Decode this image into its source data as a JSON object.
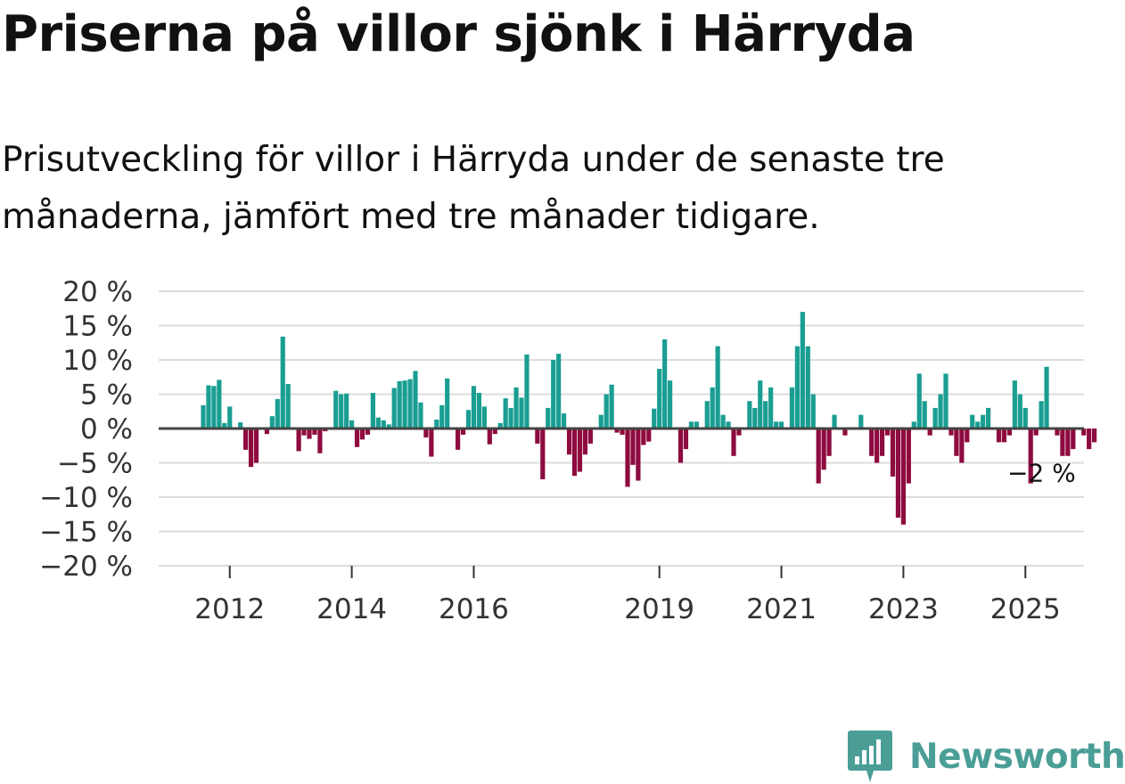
{
  "title": "Priserna på villor sjönk i Härryda",
  "subtitle": "Prisutveckling för villor i Härryda under de senaste tre månaderna, jämfört med tre månader tidigare.",
  "brand": "Newsworthy",
  "colors": {
    "positive": "#1a9e92",
    "negative": "#8e0b3f",
    "grid": "#dddddd",
    "zero": "#444444",
    "logo": "#4a9e96"
  },
  "chart_data": {
    "type": "bar",
    "ylim": [
      -20,
      20
    ],
    "yticks": [
      20,
      15,
      10,
      5,
      0,
      -5,
      -10,
      -15,
      -20
    ],
    "ytick_labels": [
      "20 %",
      "15 %",
      "10 %",
      "5 %",
      "0 %",
      "−5 %",
      "−10 %",
      "−15 %",
      "−20 %"
    ],
    "xticks": [
      {
        "label": "2012",
        "index": 5
      },
      {
        "label": "2014",
        "index": 28
      },
      {
        "label": "2016",
        "index": 51
      },
      {
        "label": "2019",
        "index": 86
      },
      {
        "label": "2021",
        "index": 109
      },
      {
        "label": "2023",
        "index": 132
      },
      {
        "label": "2025",
        "index": 155
      }
    ],
    "end_label": "−2 %",
    "values": [
      3.4,
      6.3,
      6.2,
      7.1,
      0.8,
      3.2,
      0,
      0.9,
      -3.1,
      -5.6,
      -5.0,
      0,
      -0.8,
      1.8,
      4.3,
      13.4,
      6.5,
      0,
      -3.3,
      -1.0,
      -1.5,
      -0.9,
      -3.6,
      -0.4,
      0,
      5.5,
      5.0,
      5.1,
      1.2,
      -2.7,
      -1.6,
      -0.9,
      5.2,
      1.6,
      1.2,
      0.6,
      5.9,
      6.9,
      7.0,
      7.2,
      8.4,
      3.8,
      -1.3,
      -4.1,
      1.3,
      3.4,
      7.3,
      0,
      -3.1,
      -0.9,
      2.7,
      6.2,
      5.2,
      3.2,
      -2.3,
      -0.8,
      0.8,
      4.4,
      3.0,
      6.0,
      4.5,
      10.8,
      0,
      -2.2,
      -7.4,
      3.0,
      10.0,
      10.9,
      2.2,
      -3.8,
      -6.9,
      -6.3,
      -3.8,
      -2.2,
      0,
      2.0,
      5.0,
      6.4,
      -0.6,
      -0.9,
      -8.5,
      -5.3,
      -7.6,
      -2.4,
      -1.9,
      2.9,
      8.7,
      13.0,
      7.0,
      0,
      -5.0,
      -3.0,
      1.0,
      1.0,
      0,
      4.0,
      6.0,
      12.0,
      2.0,
      1.0,
      -4.0,
      -1.0,
      0,
      4.0,
      3.0,
      7.0,
      4.0,
      6.0,
      1.0,
      1.0,
      0,
      6.0,
      12.0,
      17.0,
      12.0,
      5.0,
      -8.0,
      -6.0,
      -4.0,
      2.0,
      0,
      -1.0,
      0,
      0,
      2.0,
      0,
      -4.0,
      -5.0,
      -4.0,
      -1.0,
      -7.0,
      -13.0,
      -14.0,
      -8.0,
      1.0,
      8.0,
      4.0,
      -1.0,
      3.0,
      5.0,
      8.0,
      -1.0,
      -4.0,
      -5.0,
      -2.0,
      2.0,
      1.0,
      2.0,
      3.0,
      0,
      -2.0,
      -2.0,
      -1.0,
      7.0,
      5.0,
      3.0,
      -8.0,
      -1.0,
      4.0,
      9.0,
      0,
      -1.0,
      -4.0,
      -4.0,
      -3.0,
      0,
      -1.0,
      -3.0,
      -2.0
    ]
  }
}
